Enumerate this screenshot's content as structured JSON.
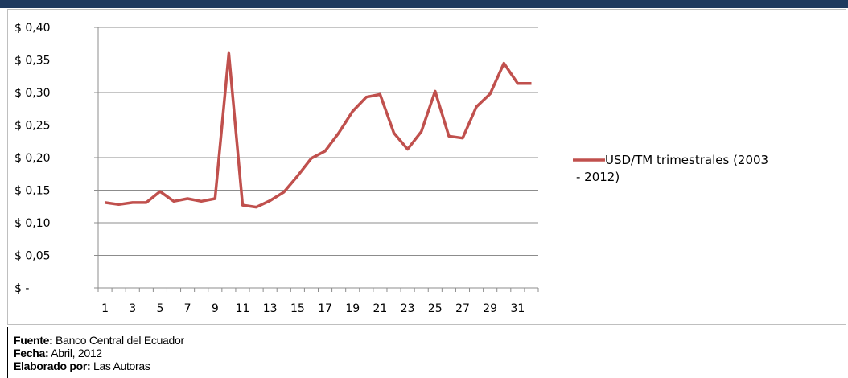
{
  "footer": {
    "fuente_label": "Fuente:",
    "fuente_value": "Banco Central del Ecuador",
    "fecha_label": "Fecha:",
    "fecha_value": "Abril, 2012",
    "elaborado_label": "Elaborado por:",
    "elaborado_value": "Las Autoras"
  },
  "colors": {
    "header": "#1f3a5f",
    "series": "#c0504d",
    "grid": "#8c8c8c"
  },
  "chart_data": {
    "type": "line",
    "title": "",
    "xlabel": "",
    "ylabel": "",
    "x": [
      1,
      2,
      3,
      4,
      5,
      6,
      7,
      8,
      9,
      10,
      11,
      12,
      13,
      14,
      15,
      16,
      17,
      18,
      19,
      20,
      21,
      22,
      23,
      24,
      25,
      26,
      27,
      28,
      29,
      30,
      31,
      32
    ],
    "x_tick_labels": [
      "1",
      "3",
      "5",
      "7",
      "9",
      "11",
      "13",
      "15",
      "17",
      "19",
      "21",
      "23",
      "25",
      "27",
      "29",
      "31"
    ],
    "y_tick_labels": [
      "$ -",
      "$ 0,05",
      "$ 0,10",
      "$ 0,15",
      "$ 0,20",
      "$ 0,25",
      "$ 0,30",
      "$ 0,35",
      "$ 0,40"
    ],
    "ylim": [
      0,
      0.4
    ],
    "grid": "horizontal",
    "legend_position": "right",
    "series": [
      {
        "name": "USD/TM trimestrales (2003 - 2012)",
        "name_lines": [
          "USD/TM trimestrales (2003",
          "- 2012)"
        ],
        "color": "#c0504d",
        "values": [
          0.131,
          0.128,
          0.131,
          0.131,
          0.148,
          0.133,
          0.137,
          0.133,
          0.137,
          0.36,
          0.127,
          0.124,
          0.134,
          0.147,
          0.172,
          0.199,
          0.21,
          0.238,
          0.271,
          0.293,
          0.297,
          0.238,
          0.213,
          0.24,
          0.302,
          0.233,
          0.23,
          0.278,
          0.298,
          0.345,
          0.314,
          0.314
        ]
      }
    ]
  }
}
